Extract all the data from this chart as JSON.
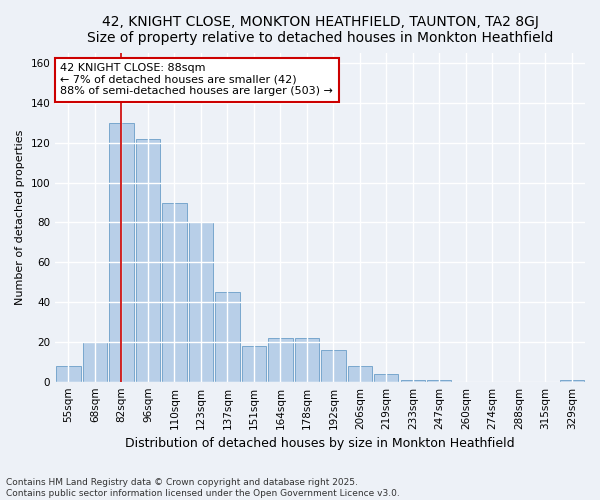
{
  "title_line1": "42, KNIGHT CLOSE, MONKTON HEATHFIELD, TAUNTON, TA2 8GJ",
  "title_line2": "Size of property relative to detached houses in Monkton Heathfield",
  "xlabel": "Distribution of detached houses by size in Monkton Heathfield",
  "ylabel": "Number of detached properties",
  "categories": [
    "55sqm",
    "68sqm",
    "82sqm",
    "96sqm",
    "110sqm",
    "123sqm",
    "137sqm",
    "151sqm",
    "164sqm",
    "178sqm",
    "192sqm",
    "206sqm",
    "219sqm",
    "233sqm",
    "247sqm",
    "260sqm",
    "274sqm",
    "288sqm",
    "315sqm",
    "329sqm"
  ],
  "values": [
    8,
    20,
    130,
    122,
    90,
    80,
    45,
    18,
    22,
    22,
    16,
    8,
    4,
    1,
    1,
    0,
    0,
    0,
    0,
    1
  ],
  "bar_color": "#b8cfe8",
  "bar_edge_color": "#6b9ec8",
  "annotation_text": "42 KNIGHT CLOSE: 88sqm\n← 7% of detached houses are smaller (42)\n88% of semi-detached houses are larger (503) →",
  "annotation_box_facecolor": "#ffffff",
  "annotation_box_edgecolor": "#cc0000",
  "vertical_line_color": "#cc0000",
  "vline_index": 2.0,
  "ylim": [
    0,
    165
  ],
  "yticks": [
    0,
    20,
    40,
    60,
    80,
    100,
    120,
    140,
    160
  ],
  "footnote": "Contains HM Land Registry data © Crown copyright and database right 2025.\nContains public sector information licensed under the Open Government Licence v3.0.",
  "bg_color": "#edf1f7",
  "plot_bg_color": "#edf1f7",
  "grid_color": "#ffffff",
  "title_fontsize": 10,
  "xlabel_fontsize": 9,
  "ylabel_fontsize": 8,
  "tick_fontsize": 7.5,
  "annot_fontsize": 8,
  "footnote_fontsize": 6.5
}
